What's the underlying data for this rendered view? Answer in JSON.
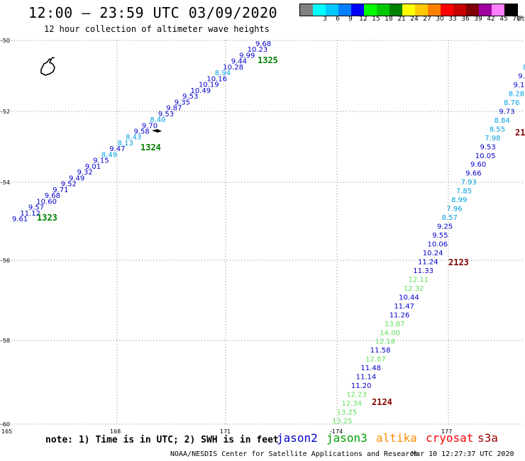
{
  "header": {
    "title": "12:00 – 23:59 UTC 03/09/2020",
    "subtitle": "12 hour collection of altimeter wave heights"
  },
  "colorbar": {
    "unit": "(ft)",
    "bins": [
      {
        "label": "",
        "color": "#808080"
      },
      {
        "label": "3",
        "color": "#00ffff"
      },
      {
        "label": "6",
        "color": "#00c8ff"
      },
      {
        "label": "9",
        "color": "#0080ff"
      },
      {
        "label": "12",
        "color": "#0000ff"
      },
      {
        "label": "15",
        "color": "#00ff00"
      },
      {
        "label": "18",
        "color": "#00c800"
      },
      {
        "label": "21",
        "color": "#008000"
      },
      {
        "label": "24",
        "color": "#ffff00"
      },
      {
        "label": "27",
        "color": "#ffc800"
      },
      {
        "label": "30",
        "color": "#ff8000"
      },
      {
        "label": "33",
        "color": "#ff0000"
      },
      {
        "label": "36",
        "color": "#c80000"
      },
      {
        "label": "39",
        "color": "#800000"
      },
      {
        "label": "42",
        "color": "#a000a0"
      },
      {
        "label": "45",
        "color": "#ff80ff"
      },
      {
        "label": "70",
        "color": "#000000"
      }
    ]
  },
  "axes": {
    "lat_labels": [
      "-50",
      "-52",
      "-54",
      "-56",
      "-58",
      "-60"
    ],
    "lon_labels": [
      "165",
      "168",
      "171",
      "-174",
      "177"
    ]
  },
  "colors": {
    "jason2": "#0000c8",
    "jason3": "#008000",
    "altika": "#ff8c00",
    "cryosat": "#ff0000",
    "s3a": "#a00000",
    "light_blue": "#00a0e0",
    "light_green": "#60e060",
    "grid": "#808080"
  },
  "orbits": [
    "1323",
    "1324",
    "1325",
    "2123",
    "2124",
    "21"
  ],
  "track1": [
    {
      "v": "9.61",
      "c": "jason2"
    },
    {
      "v": "11.12",
      "c": "jason2"
    },
    {
      "v": "9.57",
      "c": "jason2"
    },
    {
      "v": "10.60",
      "c": "jason2"
    },
    {
      "v": "9.68",
      "c": "jason2"
    },
    {
      "v": "9.71",
      "c": "jason2"
    },
    {
      "v": "9.52",
      "c": "jason2"
    },
    {
      "v": "9.49",
      "c": "jason2"
    },
    {
      "v": "9.32",
      "c": "jason2"
    },
    {
      "v": "9.01",
      "c": "jason2"
    },
    {
      "v": "9.15",
      "c": "jason2"
    },
    {
      "v": "8.49",
      "c": "light_blue"
    },
    {
      "v": "9.47",
      "c": "jason2"
    },
    {
      "v": "8.13",
      "c": "light_blue"
    },
    {
      "v": "8.43",
      "c": "light_blue"
    },
    {
      "v": "9.58",
      "c": "jason2"
    },
    {
      "v": "9.70",
      "c": "jason2"
    },
    {
      "v": "8.40",
      "c": "light_blue"
    },
    {
      "v": "9.53",
      "c": "jason2"
    },
    {
      "v": "9.87",
      "c": "jason2"
    },
    {
      "v": "9.35",
      "c": "jason2"
    },
    {
      "v": "9.53",
      "c": "jason2"
    },
    {
      "v": "10.49",
      "c": "jason2"
    },
    {
      "v": "10.19",
      "c": "jason2"
    },
    {
      "v": "10.16",
      "c": "jason2"
    },
    {
      "v": "8.94",
      "c": "light_blue"
    },
    {
      "v": "10.28",
      "c": "jason2"
    },
    {
      "v": "9.44",
      "c": "jason2"
    },
    {
      "v": "9.99",
      "c": "jason2"
    },
    {
      "v": "10.23",
      "c": "jason2"
    },
    {
      "v": "9.68",
      "c": "jason2"
    }
  ],
  "track2": [
    {
      "v": "8",
      "c": "light_blue"
    },
    {
      "v": "9.",
      "c": "jason2"
    },
    {
      "v": "9.1",
      "c": "jason2"
    },
    {
      "v": "8.28",
      "c": "light_blue"
    },
    {
      "v": "8.76",
      "c": "light_blue"
    },
    {
      "v": "9.73",
      "c": "jason2"
    },
    {
      "v": "8.84",
      "c": "light_blue"
    },
    {
      "v": "8.55",
      "c": "light_blue"
    },
    {
      "v": "7.98",
      "c": "light_blue"
    },
    {
      "v": "9.53",
      "c": "jason2"
    },
    {
      "v": "10.05",
      "c": "jason2"
    },
    {
      "v": "9.60",
      "c": "jason2"
    },
    {
      "v": "9.66",
      "c": "jason2"
    },
    {
      "v": "7.93",
      "c": "light_blue"
    },
    {
      "v": "7.85",
      "c": "light_blue"
    },
    {
      "v": "8.99",
      "c": "light_blue"
    },
    {
      "v": "7.96",
      "c": "light_blue"
    },
    {
      "v": "8.57",
      "c": "light_blue"
    },
    {
      "v": "9.25",
      "c": "jason2"
    },
    {
      "v": "9.55",
      "c": "jason2"
    },
    {
      "v": "10.06",
      "c": "jason2"
    },
    {
      "v": "10.24",
      "c": "jason2"
    },
    {
      "v": "11.24",
      "c": "jason2"
    },
    {
      "v": "11.33",
      "c": "jason2"
    },
    {
      "v": "12.11",
      "c": "light_green"
    },
    {
      "v": "12.32",
      "c": "light_green"
    },
    {
      "v": "10.44",
      "c": "jason2"
    },
    {
      "v": "11.47",
      "c": "jason2"
    },
    {
      "v": "11.26",
      "c": "jason2"
    },
    {
      "v": "13.87",
      "c": "light_green"
    },
    {
      "v": "14.00",
      "c": "light_green"
    },
    {
      "v": "12.18",
      "c": "light_green"
    },
    {
      "v": "11.58",
      "c": "jason2"
    },
    {
      "v": "12.87",
      "c": "light_green"
    },
    {
      "v": "11.48",
      "c": "jason2"
    },
    {
      "v": "11.14",
      "c": "jason2"
    },
    {
      "v": "11.20",
      "c": "jason2"
    },
    {
      "v": "12.23",
      "c": "light_green"
    },
    {
      "v": "12.34",
      "c": "light_green"
    },
    {
      "v": "13.25",
      "c": "light_green"
    },
    {
      "v": "13.25",
      "c": "light_green"
    }
  ],
  "footer": {
    "note": "note: 1) Time is in UTC; 2) SWH is in feet",
    "sat_jason2": "jason2",
    "sat_jason3": "jason3",
    "sat_altika": "altika",
    "sat_cryosat": "cryosat",
    "sat_s3a": "s3a",
    "credit": "NOAA/NESDIS Center for Satellite Applications and Research",
    "timestamp": "Mar 10 12:27:37 UTC 2020"
  }
}
